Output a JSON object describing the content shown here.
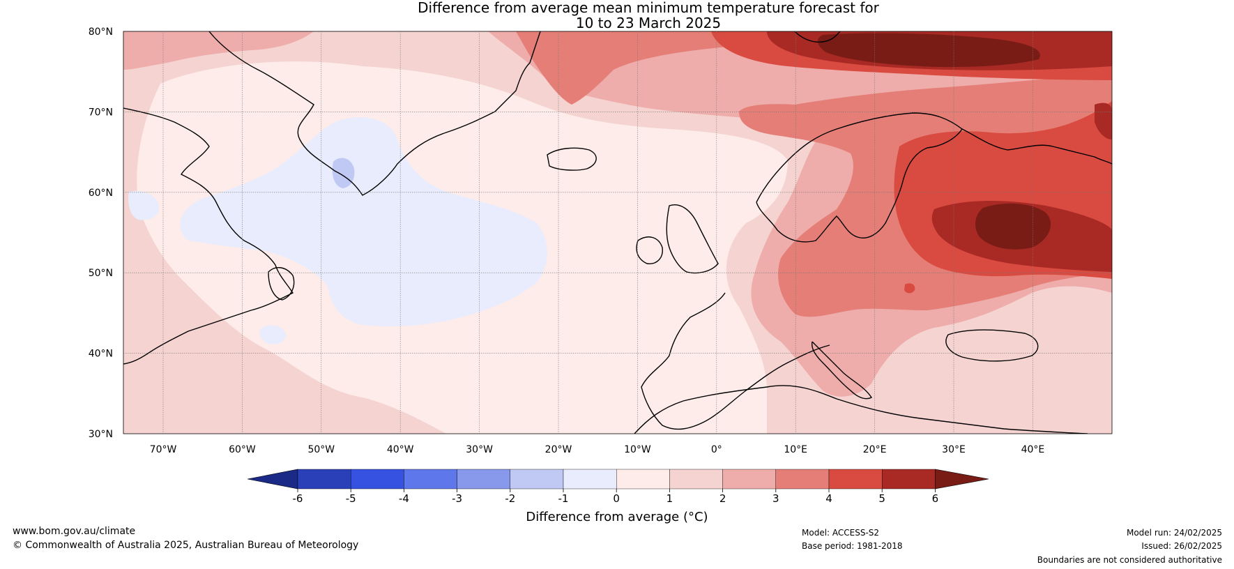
{
  "title": {
    "line1": "Difference from average mean minimum temperature forecast for",
    "line2": "10 to 23 March 2025"
  },
  "map": {
    "lat_labels": [
      "80°N",
      "70°N",
      "60°N",
      "50°N",
      "40°N",
      "30°N"
    ],
    "lon_labels": [
      "70°W",
      "60°W",
      "50°W",
      "40°W",
      "30°W",
      "20°W",
      "10°W",
      "0°",
      "10°E",
      "20°E",
      "30°E",
      "40°E"
    ]
  },
  "colorbar": {
    "ticks": [
      "-6",
      "-5",
      "-4",
      "-3",
      "-2",
      "-1",
      "0",
      "1",
      "2",
      "3",
      "4",
      "5",
      "6"
    ],
    "colors": [
      "#1a2a86",
      "#2a40b8",
      "#3553e0",
      "#5e77ea",
      "#8899ec",
      "#c0c8f4",
      "#e9ecfc",
      "#fdecea",
      "#f4d3d1",
      "#eeacaa",
      "#e47e76",
      "#d94a40",
      "#a92a24",
      "#7a1c16"
    ],
    "label": "Difference from average (°C)"
  },
  "footer": {
    "website": "www.bom.gov.au/climate",
    "copyright": "© Commonwealth of Australia 2025, Australian Bureau of Meteorology",
    "model": "Model: ACCESS-S2",
    "base_period": "Base period: 1981-2018",
    "model_run": "Model run: 24/02/2025",
    "issued": "Issued: 26/02/2025",
    "disclaimer": "Boundaries are not considered authoritative"
  }
}
